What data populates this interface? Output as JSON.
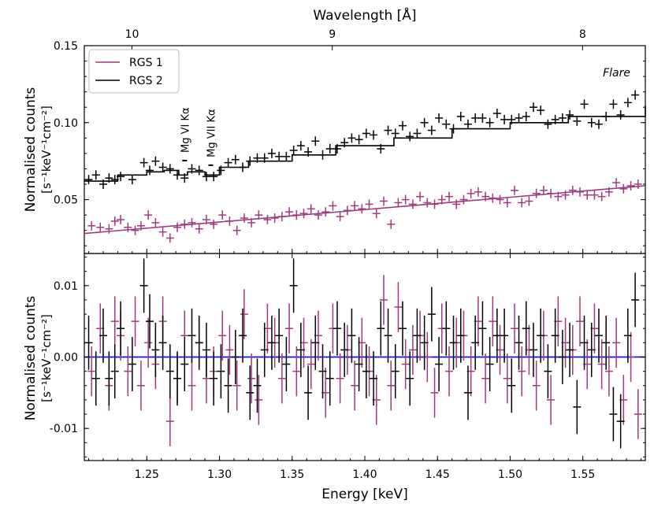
{
  "chart_data": [
    {
      "type": "scatter",
      "panel": "top",
      "title": "",
      "xlabel": "Energy [keV]",
      "ylabel": "Normalised counts",
      "ylabel_units": "[s⁻¹keV⁻¹cm⁻²]",
      "secondary_xlabel": "Wavelength [Å]",
      "secondary_ticks": [
        {
          "label": "10",
          "energy": 1.2398
        },
        {
          "label": "9",
          "energy": 1.3776
        },
        {
          "label": "8",
          "energy": 1.5498
        }
      ],
      "xlim": [
        1.207,
        1.593
      ],
      "ylim": [
        0.015,
        0.15
      ],
      "xticks": [
        1.25,
        1.3,
        1.35,
        1.4,
        1.45,
        1.5,
        1.55
      ],
      "xtick_labels": [
        "1.25",
        "1.30",
        "1.35",
        "1.40",
        "1.45",
        "1.50",
        "1.55"
      ],
      "yticks": [
        0.05,
        0.1,
        0.15
      ],
      "ytick_labels": [
        "0.05",
        "0.10",
        "0.15"
      ],
      "legend": {
        "position": "top-left",
        "entries": [
          "RGS 1",
          "RGS 2"
        ]
      },
      "annotations": [
        {
          "text": "Mg VI Kα",
          "energy": 1.276,
          "y": 0.0815
        },
        {
          "text": "Mg VII Kα",
          "energy": 1.294,
          "y": 0.0785
        }
      ],
      "label": "Flare",
      "series": [
        {
          "name": "RGS 1",
          "color": "#9e3a7f",
          "x": [
            1.212,
            1.218,
            1.224,
            1.228,
            1.232,
            1.237,
            1.242,
            1.246,
            1.251,
            1.256,
            1.261,
            1.266,
            1.271,
            1.276,
            1.281,
            1.286,
            1.291,
            1.296,
            1.302,
            1.307,
            1.312,
            1.317,
            1.322,
            1.327,
            1.333,
            1.338,
            1.343,
            1.348,
            1.353,
            1.358,
            1.363,
            1.368,
            1.373,
            1.378,
            1.383,
            1.388,
            1.393,
            1.398,
            1.403,
            1.408,
            1.413,
            1.418,
            1.423,
            1.428,
            1.433,
            1.438,
            1.443,
            1.448,
            1.453,
            1.458,
            1.463,
            1.468,
            1.473,
            1.478,
            1.483,
            1.488,
            1.493,
            1.498,
            1.503,
            1.508,
            1.513,
            1.518,
            1.523,
            1.528,
            1.533,
            1.538,
            1.543,
            1.548,
            1.553,
            1.558,
            1.563,
            1.568,
            1.573,
            1.578,
            1.583,
            1.588
          ],
          "y": [
            0.033,
            0.032,
            0.031,
            0.036,
            0.037,
            0.032,
            0.03,
            0.033,
            0.04,
            0.035,
            0.029,
            0.025,
            0.032,
            0.034,
            0.035,
            0.031,
            0.037,
            0.034,
            0.04,
            0.036,
            0.03,
            0.038,
            0.035,
            0.04,
            0.037,
            0.038,
            0.039,
            0.042,
            0.04,
            0.041,
            0.044,
            0.04,
            0.042,
            0.046,
            0.039,
            0.043,
            0.046,
            0.044,
            0.047,
            0.041,
            0.049,
            0.034,
            0.048,
            0.05,
            0.047,
            0.052,
            0.048,
            0.047,
            0.05,
            0.052,
            0.047,
            0.05,
            0.054,
            0.055,
            0.052,
            0.051,
            0.05,
            0.048,
            0.056,
            0.048,
            0.049,
            0.054,
            0.056,
            0.054,
            0.052,
            0.053,
            0.056,
            0.055,
            0.053,
            0.053,
            0.052,
            0.055,
            0.061,
            0.057,
            0.059,
            0.06
          ],
          "model_x": [
            1.207,
            1.593
          ],
          "model_y": [
            0.028,
            0.059
          ]
        },
        {
          "name": "RGS 2",
          "color": "#000000",
          "x": [
            1.21,
            1.215,
            1.22,
            1.224,
            1.228,
            1.232,
            1.24,
            1.248,
            1.252,
            1.256,
            1.261,
            1.266,
            1.271,
            1.276,
            1.281,
            1.286,
            1.291,
            1.296,
            1.301,
            1.306,
            1.311,
            1.316,
            1.321,
            1.326,
            1.331,
            1.336,
            1.341,
            1.346,
            1.351,
            1.356,
            1.361,
            1.366,
            1.371,
            1.376,
            1.381,
            1.386,
            1.391,
            1.396,
            1.401,
            1.406,
            1.411,
            1.416,
            1.421,
            1.426,
            1.431,
            1.436,
            1.441,
            1.446,
            1.451,
            1.456,
            1.461,
            1.466,
            1.471,
            1.476,
            1.481,
            1.486,
            1.491,
            1.496,
            1.501,
            1.506,
            1.511,
            1.516,
            1.521,
            1.526,
            1.531,
            1.536,
            1.541,
            1.546,
            1.551,
            1.556,
            1.561,
            1.566,
            1.571,
            1.576,
            1.581,
            1.586
          ],
          "y": [
            0.063,
            0.066,
            0.06,
            0.064,
            0.063,
            0.065,
            0.063,
            0.074,
            0.069,
            0.075,
            0.071,
            0.07,
            0.066,
            0.064,
            0.07,
            0.069,
            0.065,
            0.065,
            0.069,
            0.074,
            0.076,
            0.071,
            0.075,
            0.077,
            0.077,
            0.08,
            0.078,
            0.078,
            0.082,
            0.085,
            0.081,
            0.088,
            0.079,
            0.083,
            0.083,
            0.087,
            0.09,
            0.089,
            0.093,
            0.092,
            0.083,
            0.095,
            0.093,
            0.098,
            0.091,
            0.093,
            0.1,
            0.095,
            0.103,
            0.099,
            0.096,
            0.104,
            0.099,
            0.103,
            0.103,
            0.1,
            0.106,
            0.102,
            0.102,
            0.103,
            0.104,
            0.11,
            0.108,
            0.099,
            0.102,
            0.103,
            0.105,
            0.101,
            0.112,
            0.1,
            0.099,
            0.104,
            0.112,
            0.105,
            0.113,
            0.118
          ],
          "model_x": [
            1.207,
            1.23,
            1.25,
            1.262,
            1.272,
            1.278,
            1.29,
            1.3,
            1.32,
            1.35,
            1.38,
            1.42,
            1.46,
            1.5,
            1.54,
            1.593
          ],
          "model_y": [
            0.062,
            0.066,
            0.068,
            0.069,
            0.066,
            0.068,
            0.066,
            0.071,
            0.075,
            0.079,
            0.085,
            0.09,
            0.096,
            0.1,
            0.104,
            0.111
          ]
        }
      ]
    },
    {
      "type": "scatter",
      "panel": "bottom",
      "title": "",
      "xlabel": "Energy [keV]",
      "ylabel": "Normalised counts",
      "ylabel_units": "[s⁻¹keV⁻¹cm⁻²]",
      "xlim": [
        1.207,
        1.593
      ],
      "ylim": [
        -0.0145,
        0.0145
      ],
      "yticks": [
        -0.01,
        0.0,
        0.01
      ],
      "ytick_labels": [
        "-0.01",
        "0.00",
        "0.01"
      ],
      "zero_line_color": "#1515d4",
      "series": [
        {
          "name": "RGS 1 residuals",
          "color": "#9e3a7f",
          "x": [
            1.212,
            1.218,
            1.224,
            1.228,
            1.232,
            1.237,
            1.242,
            1.246,
            1.251,
            1.256,
            1.261,
            1.266,
            1.271,
            1.276,
            1.281,
            1.286,
            1.291,
            1.296,
            1.302,
            1.307,
            1.312,
            1.317,
            1.322,
            1.327,
            1.333,
            1.338,
            1.343,
            1.348,
            1.353,
            1.358,
            1.363,
            1.368,
            1.373,
            1.378,
            1.383,
            1.388,
            1.393,
            1.398,
            1.403,
            1.408,
            1.413,
            1.418,
            1.423,
            1.428,
            1.433,
            1.438,
            1.443,
            1.448,
            1.453,
            1.458,
            1.463,
            1.468,
            1.473,
            1.478,
            1.483,
            1.488,
            1.493,
            1.498,
            1.503,
            1.508,
            1.513,
            1.518,
            1.523,
            1.528,
            1.533,
            1.538,
            1.543,
            1.548,
            1.553,
            1.558,
            1.563,
            1.568,
            1.573,
            1.578,
            1.583,
            1.588
          ],
          "y": [
            -0.002,
            0.004,
            -0.004,
            0.005,
            0.003,
            -0.002,
            0.005,
            -0.004,
            0.002,
            -0.001,
            0.005,
            -0.009,
            -0.003,
            0.003,
            -0.004,
            0.002,
            -0.003,
            -0.002,
            0.003,
            0.001,
            -0.004,
            0.006,
            -0.003,
            -0.006,
            0.004,
            0.002,
            -0.003,
            0.004,
            -0.002,
            0.002,
            -0.001,
            0.003,
            -0.005,
            0.004,
            -0.003,
            0.001,
            -0.004,
            0.002,
            -0.002,
            -0.006,
            0.008,
            -0.004,
            0.007,
            -0.001,
            0.001,
            0.003,
            0.0,
            -0.005,
            0.004,
            -0.002,
            0.002,
            0.003,
            -0.002,
            0.005,
            -0.003,
            0.005,
            0.001,
            -0.003,
            0.004,
            -0.002,
            0.001,
            -0.004,
            0.003,
            -0.006,
            0.005,
            0.002,
            0.001,
            0.005,
            -0.001,
            0.004,
            -0.001,
            -0.002,
            0.002,
            -0.006,
            0.0,
            -0.008
          ],
          "yerr": [
            0.0035,
            0.0035,
            0.0035,
            0.0035,
            0.0035,
            0.0035,
            0.0035,
            0.0035,
            0.0035,
            0.0035,
            0.0035,
            0.0035,
            0.0035,
            0.0035,
            0.0035,
            0.0035,
            0.0035,
            0.0035,
            0.0035,
            0.0035,
            0.0035,
            0.0035,
            0.0035,
            0.0035,
            0.0035,
            0.0035,
            0.0035,
            0.0035,
            0.0035,
            0.0035,
            0.0035,
            0.0035,
            0.0035,
            0.0035,
            0.0035,
            0.0035,
            0.0035,
            0.0035,
            0.0035,
            0.0035,
            0.0035,
            0.0035,
            0.0035,
            0.0035,
            0.0035,
            0.0035,
            0.0035,
            0.0035,
            0.0035,
            0.0035,
            0.0035,
            0.0035,
            0.0035,
            0.0035,
            0.0035,
            0.0035,
            0.0035,
            0.0035,
            0.0035,
            0.0035,
            0.0035,
            0.0035,
            0.0035,
            0.0035,
            0.0035,
            0.0035,
            0.0035,
            0.0035,
            0.0035,
            0.0035,
            0.0035,
            0.0035,
            0.0035,
            0.0035,
            0.0035,
            0.0035
          ]
        },
        {
          "name": "RGS 2 residuals",
          "color": "#000000",
          "x": [
            1.21,
            1.215,
            1.22,
            1.224,
            1.228,
            1.232,
            1.24,
            1.248,
            1.252,
            1.256,
            1.261,
            1.266,
            1.271,
            1.276,
            1.281,
            1.286,
            1.291,
            1.296,
            1.301,
            1.306,
            1.311,
            1.316,
            1.321,
            1.326,
            1.331,
            1.336,
            1.341,
            1.346,
            1.351,
            1.356,
            1.361,
            1.366,
            1.371,
            1.376,
            1.381,
            1.386,
            1.391,
            1.396,
            1.401,
            1.406,
            1.411,
            1.416,
            1.421,
            1.426,
            1.431,
            1.436,
            1.441,
            1.446,
            1.451,
            1.456,
            1.461,
            1.466,
            1.471,
            1.476,
            1.481,
            1.486,
            1.491,
            1.496,
            1.501,
            1.506,
            1.511,
            1.516,
            1.521,
            1.526,
            1.531,
            1.536,
            1.541,
            1.546,
            1.551,
            1.556,
            1.561,
            1.566,
            1.571,
            1.576,
            1.581,
            1.586
          ],
          "y": [
            0.002,
            -0.003,
            0.003,
            -0.003,
            -0.002,
            0.004,
            -0.001,
            0.01,
            0.005,
            0.001,
            0.002,
            -0.002,
            -0.003,
            -0.001,
            0.003,
            0.002,
            0.001,
            -0.003,
            -0.002,
            -0.004,
            0.0,
            0.003,
            -0.005,
            -0.004,
            0.001,
            0.002,
            0.003,
            -0.001,
            0.01,
            0.001,
            -0.005,
            0.002,
            -0.002,
            -0.003,
            0.004,
            0.001,
            0.003,
            -0.001,
            -0.002,
            -0.003,
            0.004,
            0.003,
            -0.002,
            0.004,
            -0.003,
            0.003,
            0.002,
            0.006,
            -0.001,
            0.004,
            0.002,
            0.003,
            -0.005,
            0.002,
            0.004,
            -0.001,
            0.003,
            0.003,
            -0.004,
            0.002,
            0.004,
            0.001,
            0.003,
            -0.002,
            0.003,
            0.0,
            0.001,
            -0.007,
            0.002,
            0.001,
            0.003,
            0.002,
            -0.008,
            -0.009,
            0.003,
            0.008
          ],
          "yerr": [
            0.0038,
            0.0038,
            0.0038,
            0.0038,
            0.0038,
            0.0038,
            0.0038,
            0.0038,
            0.0038,
            0.0038,
            0.0038,
            0.0038,
            0.0038,
            0.0038,
            0.0038,
            0.0038,
            0.0038,
            0.0038,
            0.0038,
            0.0038,
            0.0038,
            0.0038,
            0.0038,
            0.0038,
            0.0038,
            0.0038,
            0.0038,
            0.0038,
            0.0038,
            0.0038,
            0.0038,
            0.0038,
            0.0038,
            0.0038,
            0.0038,
            0.0038,
            0.0038,
            0.0038,
            0.0038,
            0.0038,
            0.0038,
            0.0038,
            0.0038,
            0.0038,
            0.0038,
            0.0038,
            0.0038,
            0.0038,
            0.0038,
            0.0038,
            0.0038,
            0.0038,
            0.0038,
            0.0038,
            0.0038,
            0.0038,
            0.0038,
            0.0038,
            0.0038,
            0.0038,
            0.0038,
            0.0038,
            0.0038,
            0.0038,
            0.0038,
            0.0038,
            0.0038,
            0.0038,
            0.0038,
            0.0038,
            0.0038,
            0.0038,
            0.0038,
            0.0038,
            0.0038,
            0.0038
          ]
        }
      ]
    }
  ],
  "colors": {
    "rgs1": "#9e3a7f",
    "rgs2": "#000000",
    "flare_label": "#0000cc",
    "zero_line": "#1515d4"
  }
}
